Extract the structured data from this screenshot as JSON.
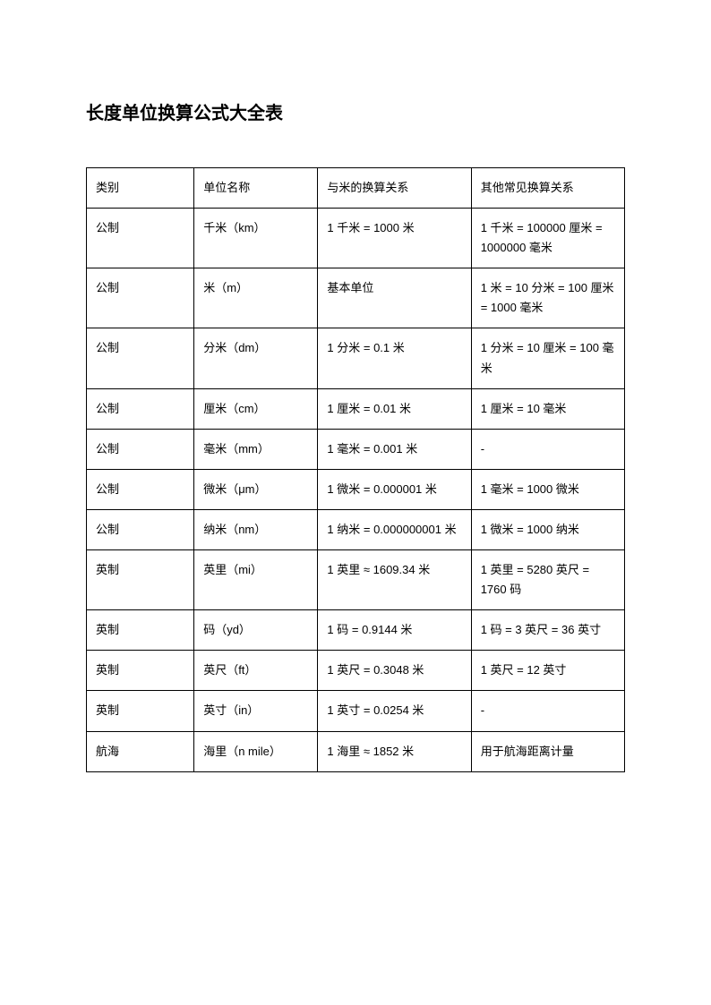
{
  "title": "长度单位换算公式大全表",
  "table": {
    "columns": [
      "类别",
      "单位名称",
      "与米的换算关系",
      "其他常见换算关系"
    ],
    "rows": [
      [
        "公制",
        "千米（km）",
        "1 千米 = 1000 米",
        "1 千米 = 100000 厘米 = 1000000 毫米"
      ],
      [
        "公制",
        "米（m）",
        "基本单位",
        "1 米 = 10 分米 = 100 厘米 = 1000 毫米"
      ],
      [
        "公制",
        "分米（dm）",
        "1 分米 = 0.1 米",
        "1 分米 = 10 厘米 = 100 毫米"
      ],
      [
        "公制",
        "厘米（cm）",
        "1 厘米 = 0.01 米",
        "1 厘米 = 10 毫米"
      ],
      [
        "公制",
        "毫米（mm）",
        "1 毫米 = 0.001 米",
        "-"
      ],
      [
        "公制",
        "微米（μm）",
        "1 微米 = 0.000001 米",
        "1 毫米 = 1000 微米"
      ],
      [
        "公制",
        "纳米（nm）",
        "1 纳米 = 0.000000001 米",
        "1 微米 = 1000 纳米"
      ],
      [
        "英制",
        "英里（mi）",
        "1 英里 ≈ 1609.34 米",
        "1 英里 = 5280 英尺 = 1760 码"
      ],
      [
        "英制",
        "码（yd）",
        "1 码 = 0.9144 米",
        "1 码 = 3 英尺 = 36 英寸"
      ],
      [
        "英制",
        "英尺（ft）",
        "1 英尺 = 0.3048 米",
        "1 英尺 = 12 英寸"
      ],
      [
        "英制",
        "英寸（in）",
        "1 英寸 = 0.0254 米",
        "-"
      ],
      [
        "航海",
        "海里（n mile）",
        "1 海里 ≈ 1852 米",
        "用于航海距离计量"
      ]
    ]
  }
}
